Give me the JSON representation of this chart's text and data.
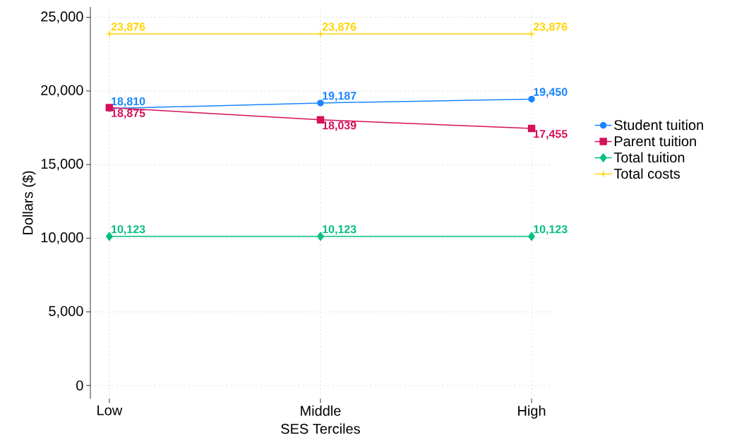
{
  "chart_data": {
    "type": "line",
    "xlabel": "SES Terciles",
    "ylabel": "Dollars ($)",
    "categories": [
      "Low",
      "Middle",
      "High"
    ],
    "series": [
      {
        "name": "Student tuition",
        "color": "#1a85ff",
        "marker": "circle",
        "values": [
          18810,
          19187,
          19450
        ],
        "value_labels": [
          "18,810",
          "19,187",
          "19,450"
        ]
      },
      {
        "name": "Parent tuition",
        "color": "#d41159",
        "marker": "square",
        "values": [
          18875,
          18039,
          17455
        ],
        "value_labels": [
          "18,875",
          "18,039",
          "17,455"
        ]
      },
      {
        "name": "Total tuition",
        "color": "#00bf7f",
        "marker": "diamond",
        "values": [
          10123,
          10123,
          10123
        ],
        "value_labels": [
          "10,123",
          "10,123",
          "10,123"
        ]
      },
      {
        "name": "Total costs",
        "color": "#ffd400",
        "marker": "cross",
        "values": [
          23876,
          23876,
          23876
        ],
        "value_labels": [
          "23,876",
          "23,876",
          "23,876"
        ]
      }
    ],
    "ylim": [
      -900,
      25700
    ],
    "yticks": [
      {
        "value": 0,
        "label": "0"
      },
      {
        "value": 5000,
        "label": "5,000"
      },
      {
        "value": 10000,
        "label": "10,000"
      },
      {
        "value": 15000,
        "label": "15,000"
      },
      {
        "value": 20000,
        "label": "20,000"
      },
      {
        "value": 25000,
        "label": "25,000"
      }
    ],
    "grid": true,
    "legend": "right",
    "line_style": "solid"
  }
}
